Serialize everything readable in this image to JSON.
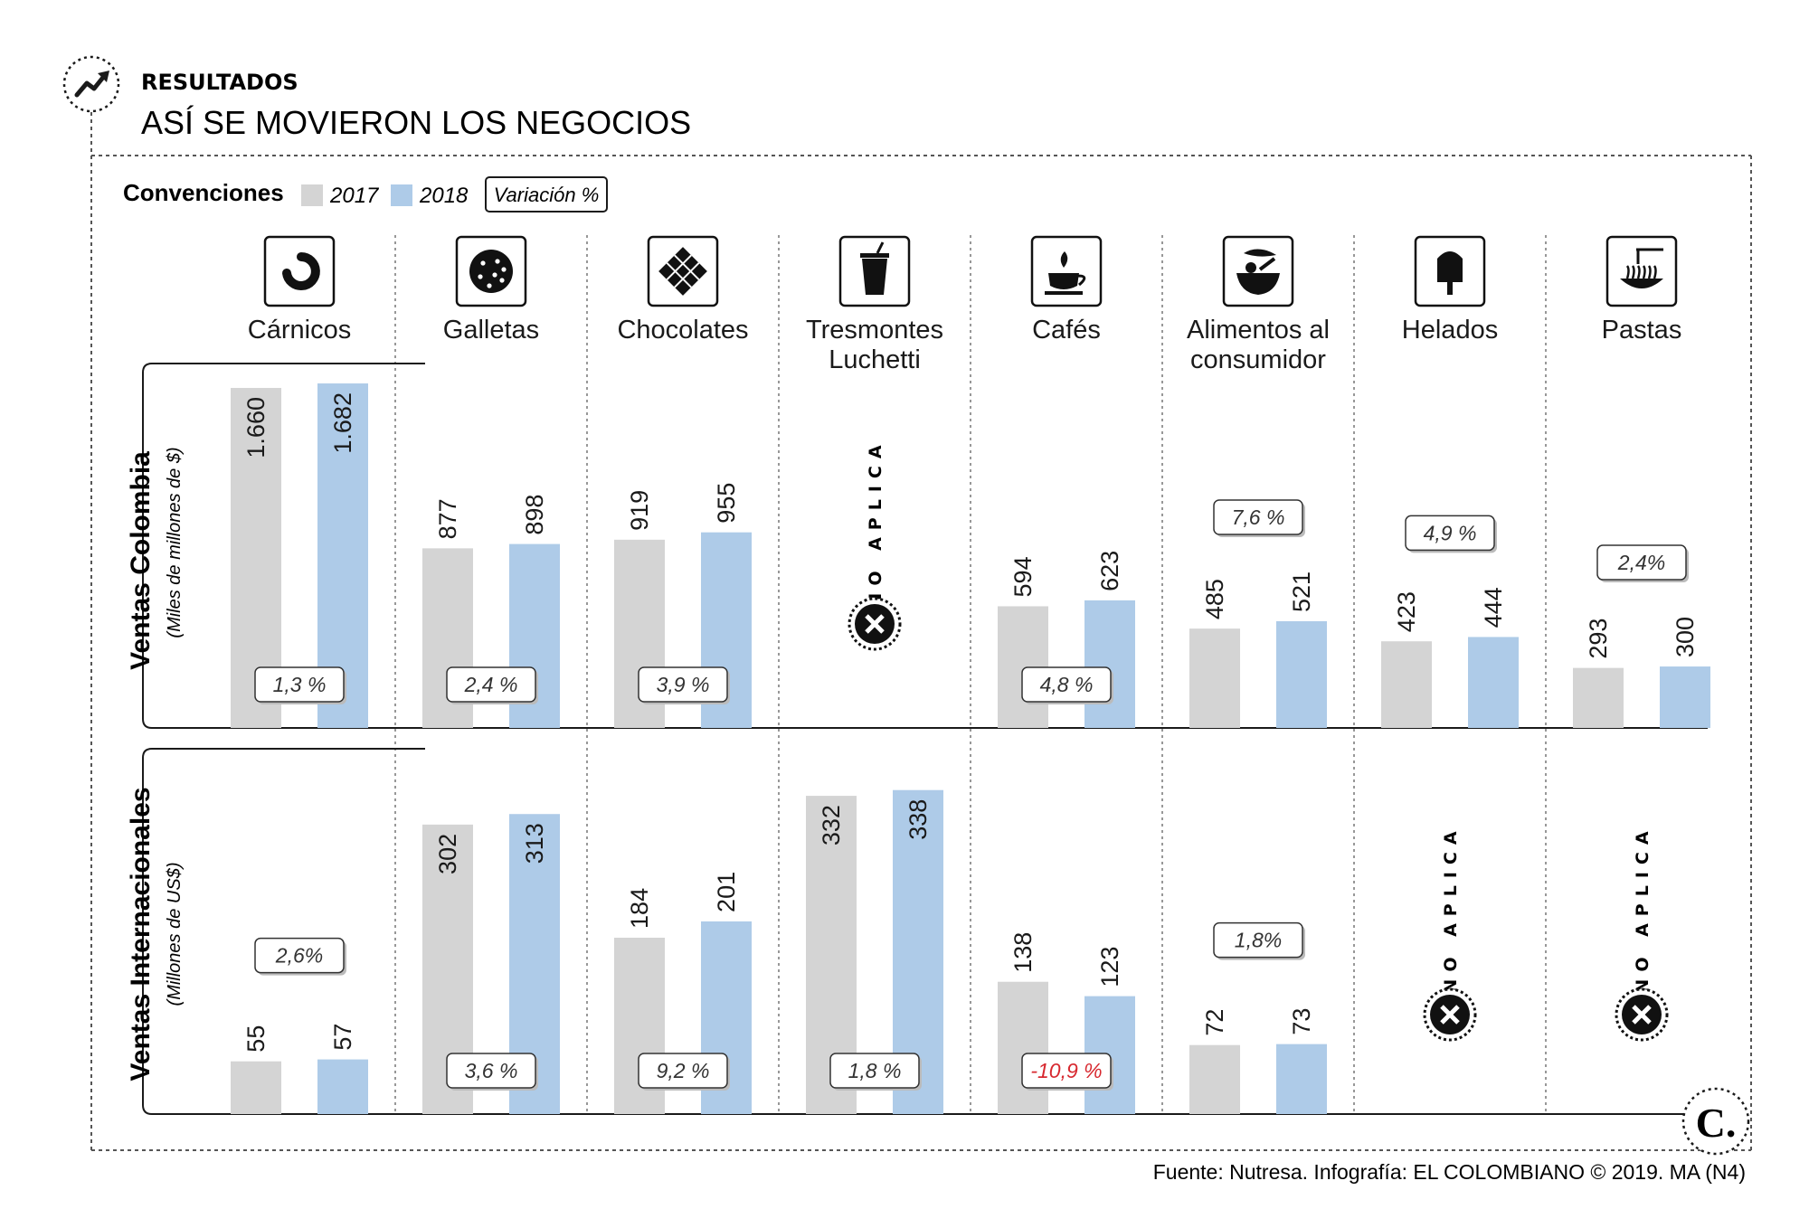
{
  "header": {
    "kicker": "RESULTADOS",
    "title": "ASÍ SE MOVIERON LOS NEGOCIOS"
  },
  "legend": {
    "label": "Convenciones",
    "year_a": "2017",
    "year_b": "2018",
    "variation": "Variación %"
  },
  "source": "Fuente: Nutresa. Infografía: EL COLOMBIANO © 2019. MA (N4)",
  "logo_text": "C.",
  "colors": {
    "year_a": "#d4d4d4",
    "year_b": "#aecbe8",
    "negative": "#d7282f"
  },
  "not_applicable_label": "NO APLICA",
  "chart_data": [
    {
      "type": "bar",
      "title": "Ventas Colombia",
      "ylabel": "(Miles de millones de $)",
      "categories": [
        "Cárnicos",
        "Galletas",
        "Chocolates",
        "Tresmontes Luchetti",
        "Cafés",
        "Alimentos al consumidor",
        "Helados",
        "Pastas"
      ],
      "category_icons": [
        "sausage-icon",
        "cookie-icon",
        "chocolate-bar-icon",
        "drink-cup-icon",
        "coffee-cup-icon",
        "food-bowl-icon",
        "popsicle-icon",
        "pasta-plate-icon"
      ],
      "series": [
        {
          "name": "2017",
          "values": [
            1660,
            877,
            919,
            null,
            594,
            485,
            423,
            293
          ],
          "labels": [
            "1.660",
            "877",
            "919",
            "",
            "594",
            "485",
            "423",
            "293"
          ]
        },
        {
          "name": "2018",
          "values": [
            1682,
            898,
            955,
            null,
            623,
            521,
            444,
            300
          ],
          "labels": [
            "1.682",
            "898",
            "955",
            "",
            "623",
            "521",
            "444",
            "300"
          ]
        }
      ],
      "variation": [
        "1,3 %",
        "2,4 %",
        "3,9 %",
        "",
        "4,8 %",
        "7,6 %",
        "4,9 %",
        "2,4%"
      ],
      "not_applicable": [
        false,
        false,
        false,
        true,
        false,
        false,
        false,
        false
      ]
    },
    {
      "type": "bar",
      "title": "Ventas Internacionales",
      "ylabel": "(Millones de US$)",
      "categories": [
        "Cárnicos",
        "Galletas",
        "Chocolates",
        "Tresmontes Luchetti",
        "Cafés",
        "Alimentos al consumidor",
        "Helados",
        "Pastas"
      ],
      "series": [
        {
          "name": "2017",
          "values": [
            55,
            302,
            184,
            332,
            138,
            72,
            null,
            null
          ],
          "labels": [
            "55",
            "302",
            "184",
            "332",
            "138",
            "72",
            "",
            ""
          ]
        },
        {
          "name": "2018",
          "values": [
            57,
            313,
            201,
            338,
            123,
            73,
            null,
            null
          ],
          "labels": [
            "57",
            "313",
            "201",
            "338",
            "123",
            "73",
            "",
            ""
          ]
        }
      ],
      "variation": [
        "2,6%",
        "3,6 %",
        "9,2 %",
        "1,8 %",
        "-10,9 %",
        "1,8%",
        "",
        ""
      ],
      "variation_negative": [
        false,
        false,
        false,
        false,
        true,
        false,
        false,
        false
      ],
      "not_applicable": [
        false,
        false,
        false,
        false,
        false,
        false,
        true,
        true
      ]
    }
  ]
}
